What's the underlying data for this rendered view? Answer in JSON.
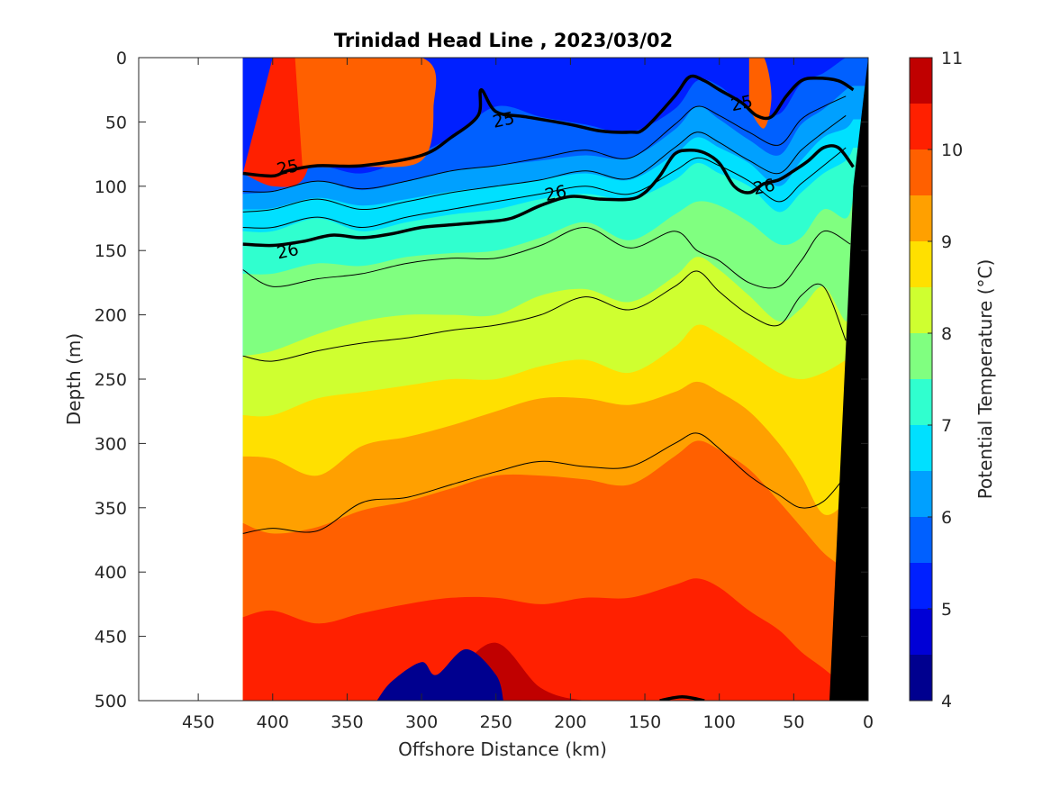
{
  "chart_data": {
    "type": "heatmap",
    "title": "Trinidad Head Line , 2023/03/02",
    "xlabel": "Offshore Distance (km)",
    "ylabel": "Depth (m)",
    "colorbar_label": "Potential Temperature (°C)",
    "xlim": [
      490,
      0
    ],
    "ylim": [
      0,
      500
    ],
    "x_direction": "reversed",
    "y_direction": "increasing downward",
    "x_ticks": [
      450,
      400,
      350,
      300,
      250,
      200,
      150,
      100,
      50,
      0
    ],
    "y_ticks": [
      0,
      50,
      100,
      150,
      200,
      250,
      300,
      350,
      400,
      450,
      500
    ],
    "colorbar_ticks": [
      4,
      5,
      6,
      7,
      8,
      9,
      10,
      11
    ],
    "colorbar_range": [
      4,
      11
    ],
    "colorbar_levels": [
      4.0,
      4.5,
      5.0,
      5.5,
      6.0,
      6.5,
      7.0,
      7.5,
      8.0,
      8.5,
      9.0,
      9.5,
      10.0,
      10.5,
      11.0
    ],
    "colorbar_colors": [
      "#00008f",
      "#0000d6",
      "#0020ff",
      "#0060ff",
      "#00a0ff",
      "#00e0ff",
      "#30ffcf",
      "#80ff80",
      "#cfff30",
      "#ffe000",
      "#ffa000",
      "#ff6000",
      "#ff2000",
      "#c00000"
    ],
    "data_extent_x": [
      420,
      10
    ],
    "temperature_field": {
      "x": [
        420,
        400,
        370,
        340,
        310,
        280,
        250,
        220,
        190,
        160,
        130,
        115,
        100,
        80,
        60,
        45,
        30,
        15,
        10
      ],
      "band_top_depths": [
        [
          0,
          0,
          0,
          0,
          0,
          0,
          0,
          0,
          0,
          0,
          0,
          0,
          0,
          0,
          0,
          0,
          0,
          0,
          0
        ],
        [
          0,
          0,
          0,
          0,
          0,
          0,
          0,
          0,
          0,
          0,
          0,
          0,
          0,
          0,
          0,
          0,
          0,
          0,
          0
        ],
        [
          0,
          0,
          0,
          0,
          0,
          0,
          0,
          0,
          0,
          0,
          0,
          0,
          0,
          0,
          0,
          0,
          0,
          0,
          0
        ],
        [
          90,
          90,
          84,
          90,
          78,
          62,
          38,
          46,
          52,
          58,
          40,
          18,
          22,
          40,
          44,
          20,
          12,
          0,
          0
        ],
        [
          106,
          104,
          96,
          103,
          96,
          88,
          84,
          80,
          76,
          78,
          56,
          38,
          48,
          64,
          76,
          52,
          40,
          25,
          22
        ],
        [
          118,
          117,
          109,
          115,
          110,
          104,
          100,
          95,
          90,
          95,
          75,
          62,
          70,
          82,
          100,
          80,
          62,
          55,
          48
        ],
        [
          135,
          135,
          125,
          135,
          128,
          122,
          118,
          110,
          106,
          110,
          95,
          82,
          90,
          100,
          120,
          105,
          90,
          80,
          70
        ],
        [
          168,
          168,
          160,
          162,
          155,
          152,
          150,
          140,
          128,
          142,
          122,
          112,
          115,
          128,
          145,
          140,
          118,
          125,
          110
        ],
        [
          232,
          228,
          215,
          205,
          200,
          200,
          200,
          185,
          180,
          190,
          170,
          155,
          165,
          185,
          205,
          195,
          178,
          205,
          190
        ],
        [
          278,
          278,
          265,
          260,
          255,
          250,
          250,
          240,
          235,
          245,
          225,
          208,
          215,
          230,
          245,
          250,
          245,
          235,
          230
        ],
        [
          310,
          312,
          325,
          302,
          295,
          286,
          275,
          265,
          265,
          270,
          260,
          252,
          260,
          275,
          300,
          325,
          355,
          345,
          330
        ],
        [
          362,
          370,
          365,
          352,
          345,
          335,
          325,
          325,
          328,
          332,
          310,
          298,
          305,
          320,
          345,
          365,
          385,
          400,
          420
        ],
        [
          435,
          430,
          440,
          432,
          425,
          420,
          420,
          425,
          420,
          420,
          410,
          405,
          412,
          430,
          445,
          462,
          475,
          490,
          500
        ],
        [
          500,
          500,
          500,
          500,
          500,
          480,
          455,
          490,
          500,
          500,
          500,
          500,
          500,
          500,
          500,
          500,
          500,
          500,
          500
        ]
      ],
      "warm_patches": [
        {
          "band": 12,
          "x": [
            400,
            380,
            370,
            372,
            380,
            400,
            420
          ],
          "y": [
            0,
            0,
            20,
            60,
            95,
            100,
            90
          ]
        },
        {
          "band": 11,
          "x": [
            385,
            300,
            292,
            300,
            340,
            380
          ],
          "y": [
            0,
            0,
            40,
            80,
            85,
            85
          ]
        },
        {
          "band": 11,
          "x": [
            80,
            70,
            65,
            70,
            80
          ],
          "y": [
            0,
            0,
            30,
            55,
            40
          ]
        },
        {
          "band": 0,
          "x": [
            330,
            320,
            300,
            290,
            270,
            250,
            245
          ],
          "y": [
            500,
            485,
            470,
            480,
            460,
            480,
            500
          ]
        }
      ]
    },
    "density_contours_labeled": [
      {
        "label": "25",
        "label_at": [
          [
            390,
            85
          ],
          [
            245,
            48
          ],
          [
            85,
            35
          ]
        ],
        "x": [
          420,
          400,
          390,
          370,
          340,
          300,
          280,
          262,
          260,
          250,
          230,
          200,
          180,
          160,
          150,
          130,
          120,
          110,
          100,
          85,
          75,
          65,
          55,
          45,
          35,
          20,
          10
        ],
        "y": [
          90,
          92,
          88,
          84,
          84,
          76,
          62,
          45,
          25,
          42,
          46,
          52,
          57,
          58,
          55,
          30,
          15,
          18,
          25,
          35,
          45,
          46,
          30,
          18,
          16,
          18,
          25
        ]
      },
      {
        "label": "26",
        "label_at": [
          [
            390,
            150
          ],
          [
            210,
            105
          ],
          [
            70,
            100
          ]
        ],
        "x": [
          420,
          400,
          380,
          360,
          340,
          320,
          300,
          280,
          260,
          240,
          220,
          200,
          180,
          160,
          150,
          140,
          130,
          120,
          110,
          100,
          90,
          80,
          70,
          60,
          50,
          40,
          30,
          20,
          10
        ],
        "y": [
          145,
          146,
          143,
          138,
          140,
          137,
          132,
          130,
          128,
          125,
          115,
          108,
          110,
          110,
          105,
          92,
          75,
          72,
          74,
          82,
          100,
          105,
          98,
          95,
          88,
          80,
          70,
          70,
          85
        ]
      },
      {
        "label": "",
        "x": [
          140,
          125,
          110
        ],
        "y": [
          500,
          497,
          500
        ]
      }
    ],
    "density_contours_thin": [
      {
        "x": [
          420,
          400,
          370,
          340,
          310,
          280,
          250,
          220,
          190,
          160,
          130,
          115,
          100,
          80,
          60,
          45,
          30,
          15
        ],
        "y": [
          104,
          104,
          96,
          102,
          96,
          88,
          84,
          78,
          72,
          78,
          52,
          38,
          45,
          58,
          68,
          48,
          38,
          30
        ]
      },
      {
        "x": [
          420,
          400,
          370,
          340,
          310,
          280,
          250,
          220,
          190,
          160,
          130,
          115,
          100,
          80,
          60,
          45,
          30,
          15
        ],
        "y": [
          120,
          118,
          110,
          118,
          112,
          105,
          100,
          95,
          88,
          94,
          70,
          58,
          66,
          80,
          90,
          72,
          58,
          45
        ]
      },
      {
        "x": [
          420,
          400,
          370,
          340,
          310,
          280,
          250,
          220,
          190,
          160,
          130,
          115,
          100,
          80,
          60,
          45,
          30,
          15
        ],
        "y": [
          132,
          132,
          124,
          132,
          124,
          118,
          112,
          106,
          100,
          106,
          88,
          78,
          84,
          96,
          112,
          98,
          84,
          70
        ]
      },
      {
        "x": [
          420,
          400,
          370,
          340,
          310,
          280,
          250,
          220,
          190,
          160,
          130,
          115,
          100,
          80,
          60,
          45,
          30,
          12
        ],
        "y": [
          165,
          178,
          172,
          168,
          160,
          156,
          156,
          146,
          132,
          148,
          135,
          150,
          158,
          175,
          178,
          158,
          135,
          145
        ]
      },
      {
        "x": [
          420,
          400,
          370,
          340,
          310,
          280,
          250,
          220,
          190,
          160,
          130,
          115,
          100,
          80,
          60,
          45,
          30,
          15
        ],
        "y": [
          232,
          236,
          228,
          222,
          218,
          212,
          208,
          200,
          186,
          196,
          178,
          166,
          182,
          200,
          208,
          185,
          178,
          220
        ]
      },
      {
        "x": [
          420,
          400,
          370,
          340,
          310,
          280,
          250,
          220,
          190,
          160,
          130,
          115,
          100,
          80,
          60,
          45,
          30,
          15
        ],
        "y": [
          370,
          366,
          368,
          346,
          342,
          332,
          322,
          314,
          318,
          318,
          300,
          292,
          304,
          325,
          340,
          350,
          345,
          325
        ]
      }
    ],
    "bathymetry_color": "#000000"
  }
}
